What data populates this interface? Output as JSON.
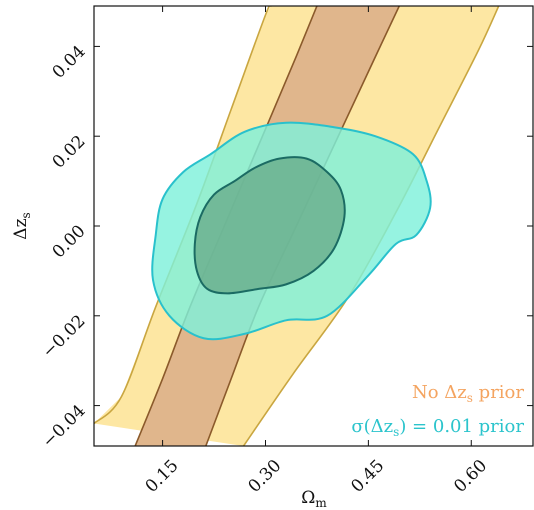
{
  "chart_data": {
    "type": "contour",
    "xlabel": "Ωm",
    "ylabel": "Δzs",
    "xlim": [
      0.05,
      0.69
    ],
    "ylim": [
      -0.049,
      0.049
    ],
    "x_ticks": [
      0.15,
      0.3,
      0.45,
      0.6
    ],
    "x_tick_labels": [
      "0.15",
      "0.30",
      "0.45",
      "0.60"
    ],
    "y_ticks": [
      -0.04,
      -0.02,
      0.0,
      0.02,
      0.04
    ],
    "y_tick_labels": [
      "−0.04",
      "−0.02",
      "0.00",
      "0.02",
      "0.04"
    ],
    "colors": {
      "no_prior_outer_fill": "#fde7a3",
      "no_prior_outer_line": "#c9a640",
      "no_prior_inner_fill": "#e0b68c",
      "no_prior_inner_line": "#8b5a2b",
      "prior_outer_fill": "#7ff0da",
      "prior_outer_line": "#29c1cc",
      "prior_inner_fill": "#6aaf8c",
      "prior_inner_line": "#1b6b63",
      "legend_no_prior": "#f4a460",
      "legend_prior": "#2bc4cc"
    },
    "series": [
      {
        "name": "No Δzs prior",
        "label_text": "No Δz",
        "label_sub": "s",
        "label_suffix": " prior",
        "contours": [
          {
            "level": "95%",
            "left_edge": [
              [
                0.05,
                -0.044
              ],
              [
                0.09,
                -0.038
              ],
              [
                0.14,
                -0.018
              ],
              [
                0.2,
                0.005
              ],
              [
                0.25,
                0.026
              ],
              [
                0.3,
                0.047
              ],
              [
                0.308,
                0.049
              ]
            ],
            "right_edge": [
              [
                0.268,
                -0.049
              ],
              [
                0.34,
                -0.033
              ],
              [
                0.42,
                -0.016
              ],
              [
                0.49,
                0.003
              ],
              [
                0.55,
                0.021
              ],
              [
                0.61,
                0.039
              ],
              [
                0.64,
                0.049
              ]
            ]
          },
          {
            "level": "68%",
            "left_edge": [
              [
                0.11,
                -0.049
              ],
              [
                0.15,
                -0.034
              ],
              [
                0.19,
                -0.018
              ],
              [
                0.24,
                0.0
              ],
              [
                0.29,
                0.018
              ],
              [
                0.34,
                0.036
              ],
              [
                0.375,
                0.049
              ]
            ],
            "right_edge": [
              [
                0.213,
                -0.049
              ],
              [
                0.25,
                -0.034
              ],
              [
                0.29,
                -0.018
              ],
              [
                0.345,
                0.0
              ],
              [
                0.4,
                0.018
              ],
              [
                0.455,
                0.036
              ],
              [
                0.495,
                0.049
              ]
            ]
          }
        ]
      },
      {
        "name": "σ(Δzs) = 0.01 prior",
        "label_text": "σ(Δz",
        "label_sub": "s",
        "label_suffix": ") = 0.01 prior",
        "contours": [
          {
            "level": "95%",
            "points": [
              [
                0.33,
                0.023
              ],
              [
                0.4,
                0.022
              ],
              [
                0.46,
                0.02
              ],
              [
                0.515,
                0.016
              ],
              [
                0.535,
                0.01
              ],
              [
                0.54,
                0.004
              ],
              [
                0.52,
                -0.002
              ],
              [
                0.49,
                -0.004
              ],
              [
                0.45,
                -0.011
              ],
              [
                0.39,
                -0.02
              ],
              [
                0.33,
                -0.021
              ],
              [
                0.27,
                -0.024
              ],
              [
                0.21,
                -0.025
              ],
              [
                0.16,
                -0.02
              ],
              [
                0.136,
                -0.012
              ],
              [
                0.14,
                -0.002
              ],
              [
                0.15,
                0.006
              ],
              [
                0.18,
                0.012
              ],
              [
                0.22,
                0.016
              ],
              [
                0.27,
                0.021
              ]
            ]
          },
          {
            "level": "68%",
            "points": [
              [
                0.32,
                0.015
              ],
              [
                0.36,
                0.015
              ],
              [
                0.39,
                0.012
              ],
              [
                0.41,
                0.008
              ],
              [
                0.415,
                0.002
              ],
              [
                0.4,
                -0.005
              ],
              [
                0.37,
                -0.01
              ],
              [
                0.33,
                -0.013
              ],
              [
                0.29,
                -0.014
              ],
              [
                0.245,
                -0.015
              ],
              [
                0.215,
                -0.014
              ],
              [
                0.2,
                -0.01
              ],
              [
                0.197,
                -0.004
              ],
              [
                0.205,
                0.002
              ],
              [
                0.225,
                0.007
              ],
              [
                0.255,
                0.01
              ],
              [
                0.285,
                0.013
              ]
            ]
          }
        ]
      }
    ]
  }
}
